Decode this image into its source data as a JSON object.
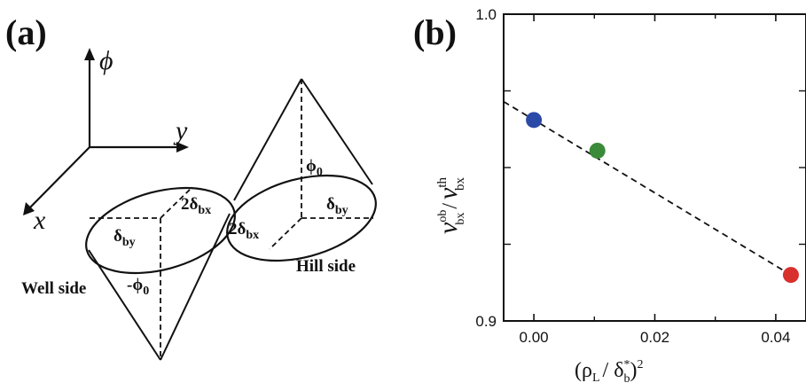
{
  "panel_a": {
    "label": "(a)",
    "axes": {
      "phi": "ϕ",
      "y": "y",
      "x": "x"
    },
    "well_side": "Well side",
    "hill_side": "Hill side",
    "left_cone": {
      "delta_by": "δ",
      "delta_by_sub": "by",
      "two_delta_bx": "2δ",
      "two_delta_bx_sub": "bx",
      "phi0": "-ϕ",
      "phi0_sub": "0"
    },
    "right_cone": {
      "delta_by": "δ",
      "delta_by_sub": "by",
      "two_delta_bx": "2δ",
      "two_delta_bx_sub": "bx",
      "phi0": "ϕ",
      "phi0_sub": "0"
    }
  },
  "panel_b": {
    "label": "(b)",
    "xlabel_main": "(ρ",
    "xlabel_sub1": "L",
    "xlabel_mid": "/ δ",
    "xlabel_sup": "*",
    "xlabel_sub2": "b",
    "xlabel_end": ")",
    "xlabel_pow": "2",
    "ylabel_num": "v",
    "ylabel_num_sup": "ob",
    "ylabel_num_sub": "bx",
    "ylabel_den": "v",
    "ylabel_den_sup": "th",
    "ylabel_den_sub": "bx",
    "ylabel_slash": "/"
  },
  "chart_data": {
    "type": "scatter",
    "title": "",
    "xlabel": "(ρL/ δb*)2",
    "ylabel": "vbx^ob / vbx^th",
    "xlim": [
      -0.005,
      0.045
    ],
    "ylim": [
      0.9,
      1.0
    ],
    "xticks": [
      "0.00",
      "0.02",
      "0.04"
    ],
    "xtick_values": [
      0.0,
      0.02,
      0.04
    ],
    "yticks": [
      "0.9",
      "1.0"
    ],
    "ytick_values": [
      0.9,
      1.0
    ],
    "points": [
      {
        "x": 0.0,
        "y": 0.9655,
        "color": "#2b4aa8"
      },
      {
        "x": 0.0105,
        "y": 0.9555,
        "color": "#3a8a3a"
      },
      {
        "x": 0.0425,
        "y": 0.915,
        "color": "#d8302c"
      }
    ],
    "fit_line": {
      "x": [
        -0.005,
        0.0425
      ],
      "y": [
        0.9715,
        0.915
      ],
      "style": "dashed"
    }
  }
}
